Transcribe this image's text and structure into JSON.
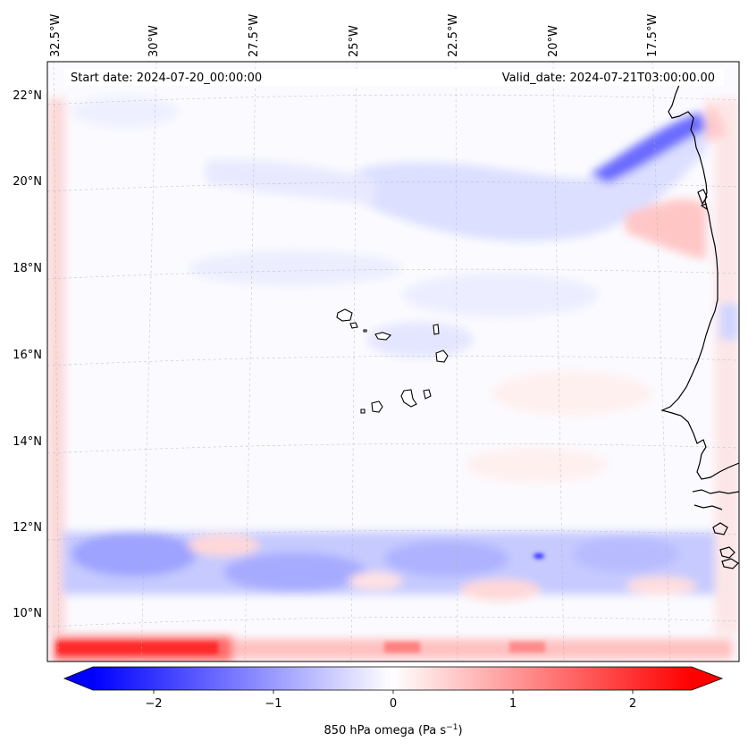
{
  "header": {
    "start_date": "Start date: 2024-07-20_00:00:00",
    "valid_date": "Valid_date: 2024-07-21T03:00:00.00"
  },
  "map": {
    "longitude_labels": [
      "32.5°W",
      "30°W",
      "27.5°W",
      "25°W",
      "22.5°W",
      "20°W",
      "17.5°W"
    ],
    "latitude_labels": [
      "22°N",
      "20°N",
      "18°N",
      "16°N",
      "14°N",
      "12°N",
      "10°N"
    ],
    "colors": {
      "negative": "#0000ff",
      "neutral": "#ffffff",
      "positive": "#ff0000",
      "coastline": "#000000",
      "gridline": "#b0b0b0"
    }
  },
  "colorbar": {
    "tick_labels": [
      "−2",
      "−1",
      "0",
      "1",
      "2"
    ],
    "label_prefix": "850 hPa omega (Pa s",
    "label_exponent": "−1",
    "label_suffix": ")",
    "range": [
      -2.5,
      2.5
    ]
  }
}
